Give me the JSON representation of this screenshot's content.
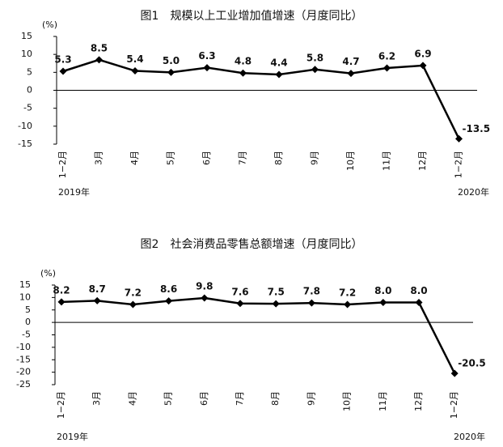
{
  "chart_data": [
    {
      "type": "line",
      "title": "图1　规模以上工业增加值增速（月度同比）",
      "ylabel": "(%)",
      "categories": [
        "1−2月",
        "3月",
        "4月",
        "5月",
        "6月",
        "7月",
        "8月",
        "9月",
        "10月",
        "11月",
        "12月",
        "1−2月"
      ],
      "annotations": [
        "2019年",
        "2020年"
      ],
      "series": [
        {
          "name": "规模以上工业增加值增速",
          "color": "#000000",
          "values": [
            5.3,
            8.5,
            5.4,
            5.0,
            6.3,
            4.8,
            4.4,
            5.8,
            4.7,
            6.2,
            6.9,
            -13.5
          ],
          "value_labels": [
            "5.3",
            "8.5",
            "5.4",
            "5.0",
            "6.3",
            "4.8",
            "4.4",
            "5.8",
            "4.7",
            "6.2",
            "6.9",
            "-13.5"
          ]
        }
      ],
      "ylim": [
        -15,
        15
      ],
      "yticks": [
        -15,
        -10,
        -5,
        0,
        5,
        10,
        15
      ],
      "grid": false
    },
    {
      "type": "line",
      "title": "图2　社会消费品零售总额增速（月度同比）",
      "ylabel": "(%)",
      "categories": [
        "1−2月",
        "3月",
        "4月",
        "5月",
        "6月",
        "7月",
        "8月",
        "9月",
        "10月",
        "11月",
        "12月",
        "1−2月"
      ],
      "annotations": [
        "2019年",
        "2020年"
      ],
      "series": [
        {
          "name": "社会消费品零售总额增速",
          "color": "#000000",
          "values": [
            8.2,
            8.7,
            7.2,
            8.6,
            9.8,
            7.6,
            7.5,
            7.8,
            7.2,
            8.0,
            8.0,
            -20.5
          ],
          "value_labels": [
            "8.2",
            "8.7",
            "7.2",
            "8.6",
            "9.8",
            "7.6",
            "7.5",
            "7.8",
            "7.2",
            "8.0",
            "8.0",
            "-20.5"
          ]
        }
      ],
      "ylim": [
        -25,
        15
      ],
      "yticks": [
        -25,
        -20,
        -15,
        -10,
        -5,
        0,
        5,
        10,
        15
      ],
      "grid": false
    }
  ]
}
